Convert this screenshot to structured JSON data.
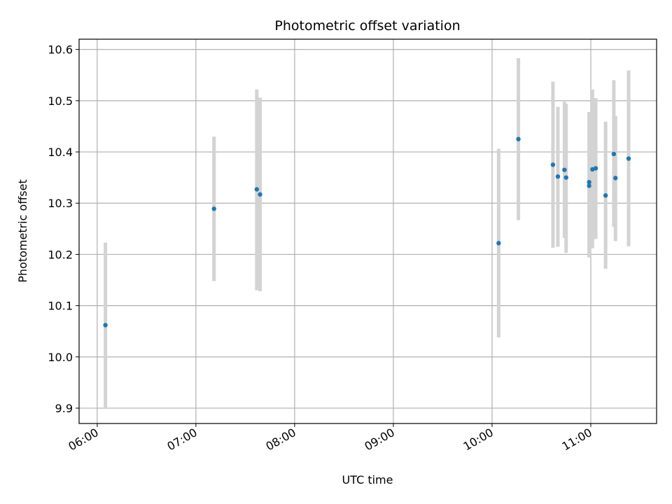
{
  "chart_data": {
    "type": "scatter",
    "title": "Photometric offset variation",
    "xlabel": "UTC time",
    "ylabel": "Photometric offset",
    "x_ticks": [
      "06:00",
      "07:00",
      "08:00",
      "09:00",
      "10:00",
      "11:00"
    ],
    "x_tick_hours": [
      6,
      7,
      8,
      9,
      10,
      11
    ],
    "y_ticks": [
      "9.9",
      "10.0",
      "10.1",
      "10.2",
      "10.3",
      "10.4",
      "10.5",
      "10.6"
    ],
    "y_tick_values": [
      9.9,
      10.0,
      10.1,
      10.2,
      10.3,
      10.4,
      10.5,
      10.6
    ],
    "xlim": [
      "05:49",
      "11:40"
    ],
    "ylim": [
      9.87,
      10.62
    ],
    "grid": true,
    "marker_color": "#1f77b4",
    "errorbar_color": "#d3d3d3",
    "points": [
      {
        "x": "06:05",
        "y": 10.062,
        "ylow": 9.9,
        "yhigh": 10.223
      },
      {
        "x": "07:11",
        "y": 10.289,
        "ylow": 10.148,
        "yhigh": 10.43
      },
      {
        "x": "07:37",
        "y": 10.327,
        "ylow": 10.13,
        "yhigh": 10.522
      },
      {
        "x": "07:39",
        "y": 10.317,
        "ylow": 10.128,
        "yhigh": 10.506
      },
      {
        "x": "10:04",
        "y": 10.222,
        "ylow": 10.038,
        "yhigh": 10.406
      },
      {
        "x": "10:16",
        "y": 10.425,
        "ylow": 10.267,
        "yhigh": 10.583
      },
      {
        "x": "10:37",
        "y": 10.375,
        "ylow": 10.213,
        "yhigh": 10.537
      },
      {
        "x": "10:40",
        "y": 10.352,
        "ylow": 10.215,
        "yhigh": 10.488
      },
      {
        "x": "10:44",
        "y": 10.365,
        "ylow": 10.232,
        "yhigh": 10.498
      },
      {
        "x": "10:45",
        "y": 10.35,
        "ylow": 10.203,
        "yhigh": 10.494
      },
      {
        "x": "10:59",
        "y": 10.334,
        "ylow": 10.194,
        "yhigh": 10.476
      },
      {
        "x": "10:59",
        "y": 10.341,
        "ylow": 10.196,
        "yhigh": 10.478
      },
      {
        "x": "11:01",
        "y": 10.366,
        "ylow": 10.212,
        "yhigh": 10.522
      },
      {
        "x": "11:03",
        "y": 10.368,
        "ylow": 10.23,
        "yhigh": 10.505
      },
      {
        "x": "11:09",
        "y": 10.315,
        "ylow": 10.172,
        "yhigh": 10.459
      },
      {
        "x": "11:14",
        "y": 10.396,
        "ylow": 10.254,
        "yhigh": 10.54
      },
      {
        "x": "11:15",
        "y": 10.349,
        "ylow": 10.226,
        "yhigh": 10.47
      },
      {
        "x": "11:23",
        "y": 10.387,
        "ylow": 10.216,
        "yhigh": 10.559
      }
    ]
  }
}
